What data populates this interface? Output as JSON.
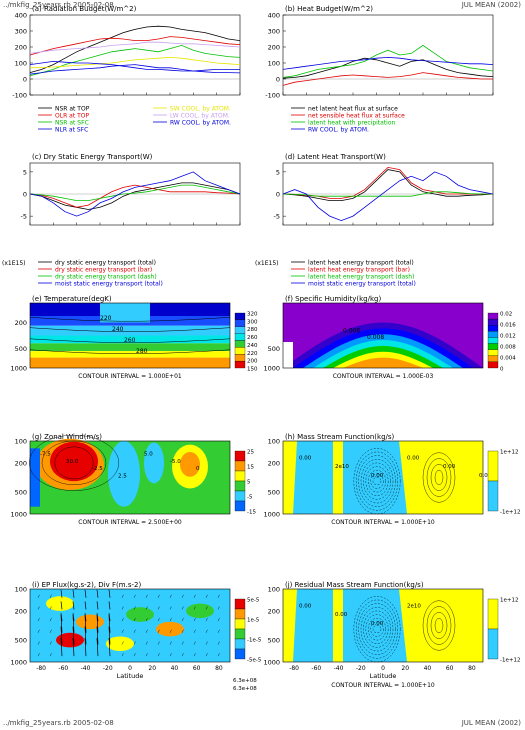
{
  "header": {
    "left": "../mkfig_25years.rb  2005-02-08",
    "right": "JUL MEAN (2002)"
  },
  "footer": {
    "left": "../mkfig_25years.rb  2005-02-08",
    "right": "JUL MEAN (2002)"
  },
  "colors": {
    "black": "#000000",
    "red": "#e00000",
    "green": "#00c000",
    "blue": "#0000e0",
    "yellow": "#e6e600",
    "violet": "#c8a0f0",
    "cyan": "#00ffff"
  },
  "chart_data": [
    {
      "type": "line",
      "title": "(a) Radiation Budget(W/m^2)",
      "ylim": [
        -100,
        400
      ],
      "yticks": [
        "400",
        "300",
        "200",
        "100",
        "0",
        "-100"
      ],
      "x": [
        -90,
        -80,
        -70,
        -60,
        -50,
        -40,
        -30,
        -20,
        -10,
        0,
        10,
        20,
        30,
        40,
        50,
        60,
        70,
        80,
        90
      ],
      "series": [
        {
          "name": "NSR at TOP",
          "color": "#000000",
          "dash": "none",
          "values": [
            40,
            60,
            90,
            130,
            170,
            200,
            230,
            260,
            290,
            310,
            325,
            330,
            325,
            310,
            300,
            290,
            270,
            250,
            240
          ]
        },
        {
          "name": "OLR at TOP",
          "color": "#e00000",
          "dash": "none",
          "values": [
            150,
            170,
            190,
            205,
            220,
            235,
            250,
            255,
            250,
            240,
            240,
            250,
            265,
            260,
            250,
            240,
            230,
            220,
            215
          ]
        },
        {
          "name": "NSR at SFC",
          "color": "#00c000",
          "dash": "none",
          "values": [
            20,
            40,
            60,
            90,
            110,
            130,
            150,
            170,
            180,
            190,
            180,
            170,
            190,
            210,
            180,
            160,
            150,
            140,
            135
          ]
        },
        {
          "name": "NLR at SFC",
          "color": "#0000e0",
          "dash": "none",
          "values": [
            30,
            40,
            50,
            55,
            60,
            65,
            70,
            80,
            85,
            90,
            80,
            70,
            70,
            60,
            50,
            45,
            40,
            40,
            38
          ]
        },
        {
          "name": "SW COOL. by ATOM.",
          "color": "#e6e600",
          "dash": "none",
          "values": [
            70,
            72,
            75,
            80,
            85,
            90,
            95,
            100,
            110,
            120,
            125,
            130,
            135,
            130,
            120,
            110,
            100,
            95,
            90
          ]
        },
        {
          "name": "LW COOL. by ATOM.",
          "color": "#c8a0f0",
          "dash": "none",
          "values": [
            160,
            170,
            180,
            185,
            190,
            195,
            200,
            210,
            215,
            220,
            230,
            230,
            225,
            220,
            220,
            215,
            210,
            205,
            200
          ]
        },
        {
          "name": "RW COOL. by ATOM.",
          "color": "#0000e0",
          "dash": "none",
          "values": [
            90,
            100,
            110,
            105,
            100,
            100,
            95,
            90,
            80,
            70,
            60,
            60,
            55,
            50,
            50,
            55,
            60,
            60,
            60
          ]
        }
      ]
    },
    {
      "type": "line",
      "title": "(b) Heat Budget(W/m^2)",
      "ylim": [
        -100,
        400
      ],
      "yticks": [
        "400",
        "300",
        "200",
        "100",
        "0",
        "-100"
      ],
      "x": [
        -90,
        -80,
        -70,
        -60,
        -50,
        -40,
        -30,
        -20,
        -10,
        0,
        10,
        20,
        30,
        40,
        50,
        60,
        70,
        80,
        90
      ],
      "series": [
        {
          "name": "net latent heat flux at surface",
          "color": "#000000",
          "dash": "none",
          "values": [
            5,
            10,
            20,
            40,
            60,
            80,
            110,
            130,
            120,
            100,
            80,
            110,
            120,
            90,
            60,
            40,
            30,
            20,
            15
          ]
        },
        {
          "name": "net sensible heat flux at surface",
          "color": "#e00000",
          "dash": "none",
          "values": [
            -40,
            -20,
            -10,
            0,
            10,
            20,
            25,
            20,
            15,
            10,
            15,
            25,
            40,
            30,
            20,
            10,
            5,
            0,
            0
          ]
        },
        {
          "name": "latent heat with precipitation",
          "color": "#00c000",
          "dash": "none",
          "values": [
            10,
            20,
            40,
            60,
            70,
            80,
            90,
            110,
            150,
            180,
            150,
            160,
            210,
            160,
            110,
            90,
            70,
            60,
            50
          ]
        },
        {
          "name": "RW COOL. by ATOM.",
          "color": "#0000e0",
          "dash": "none",
          "values": [
            60,
            70,
            80,
            90,
            100,
            110,
            115,
            120,
            130,
            135,
            130,
            120,
            115,
            110,
            105,
            100,
            95,
            95,
            90
          ]
        }
      ]
    },
    {
      "type": "line",
      "title": "(c) Dry Static Energy Transport(W)",
      "ylabel": "(x1E15)",
      "ylim": [
        -7,
        7
      ],
      "yticks": [
        "5",
        "0",
        "-5"
      ],
      "x": [
        -90,
        -80,
        -70,
        -60,
        -50,
        -40,
        -30,
        -20,
        -10,
        0,
        10,
        20,
        30,
        40,
        50,
        60,
        70,
        80,
        90
      ],
      "series": [
        {
          "name": "dry static energy transport (total)",
          "color": "#000000",
          "dash": "none",
          "values": [
            0,
            -0.5,
            -1.5,
            -2.5,
            -3,
            -3.5,
            -3,
            -2,
            -0.5,
            0.5,
            1,
            1.5,
            2,
            2.5,
            2.5,
            2,
            1.5,
            1,
            0
          ]
        },
        {
          "name": "dry static energy transport (bar)",
          "color": "#e00000",
          "dash": "none",
          "values": [
            0,
            -0.3,
            -1,
            -2,
            -3,
            -2.5,
            -1,
            0.5,
            1.5,
            2,
            1.5,
            1,
            0.5,
            0.5,
            0.5,
            0.5,
            0.3,
            0.2,
            0
          ]
        },
        {
          "name": "dry static energy transport (dash)",
          "color": "#00c000",
          "dash": "none",
          "values": [
            0,
            -0.2,
            -0.5,
            -1,
            -1.5,
            -1.5,
            -1,
            -0.5,
            0,
            0.2,
            0.5,
            1,
            1.5,
            2,
            2,
            1.5,
            1,
            0.5,
            0
          ]
        },
        {
          "name": "moist static energy transport (total)",
          "color": "#0000e0",
          "dash": "none",
          "values": [
            0,
            -0.5,
            -2,
            -4,
            -5,
            -4,
            -2,
            -1,
            0.5,
            1.5,
            2,
            2.5,
            3,
            4,
            5,
            3,
            2,
            1,
            0
          ]
        }
      ]
    },
    {
      "type": "line",
      "title": "(d) Latent Heat Transport(W)",
      "ylabel": "(x1E15)",
      "ylim": [
        -7,
        7
      ],
      "yticks": [
        "5",
        "0",
        "-5"
      ],
      "x": [
        -90,
        -80,
        -70,
        -60,
        -50,
        -40,
        -30,
        -20,
        -10,
        0,
        10,
        20,
        30,
        40,
        50,
        60,
        70,
        80,
        90
      ],
      "series": [
        {
          "name": "latent heat energy transport (total)",
          "color": "#000000",
          "dash": "none",
          "values": [
            0,
            -0.2,
            -0.5,
            -1,
            -1.5,
            -1.5,
            -1,
            0.5,
            3,
            5.5,
            5,
            2,
            0.5,
            0,
            -0.5,
            -0.5,
            -0.3,
            -0.2,
            0
          ]
        },
        {
          "name": "latent heat energy transport (bar)",
          "color": "#e00000",
          "dash": "none",
          "values": [
            0,
            -0.1,
            -0.3,
            -0.5,
            -1,
            -1,
            -0.5,
            1,
            3.5,
            6,
            5.5,
            2.5,
            1,
            0.5,
            0,
            0,
            0,
            0,
            0
          ]
        },
        {
          "name": "latent heat energy transport (dash)",
          "color": "#00c000",
          "dash": "none",
          "values": [
            0,
            -0.1,
            -0.2,
            -0.5,
            -0.5,
            -0.5,
            -0.5,
            -0.5,
            -0.5,
            -0.5,
            -0.5,
            -0.5,
            0,
            0.5,
            0.5,
            0.3,
            0.1,
            0,
            0
          ]
        },
        {
          "name": "moist static energy transport (total)",
          "color": "#0000e0",
          "dash": "none",
          "values": [
            0,
            1,
            0,
            -3,
            -5,
            -6,
            -5,
            -3,
            -1,
            1,
            3,
            4,
            3,
            5,
            4,
            2,
            1,
            0.5,
            0
          ]
        }
      ]
    },
    {
      "type": "heatmap",
      "title": "(e) Temperature(degK)",
      "note": "CONTOUR INTERVAL = 1.000E+01",
      "yticks": [
        "200",
        "500",
        "1000"
      ],
      "colorbar": [
        "320",
        "300",
        "280",
        "260",
        "240",
        "220",
        "200",
        "150"
      ],
      "colors": [
        "#0000cc",
        "#1a4cff",
        "#33ccff",
        "#00e6e6",
        "#33cc33",
        "#ffff00",
        "#ff9900",
        "#e60000"
      ],
      "contour_labels": [
        "220",
        "240",
        "260",
        "280"
      ]
    },
    {
      "type": "heatmap",
      "title": "(f) Specific Humidity(kg/kg)",
      "note": "CONTOUR INTERVAL = 1.000E-03",
      "yticks": [
        "500",
        "1000"
      ],
      "colorbar": [
        "0.02",
        "0.016",
        "0.012",
        "0.008",
        "0.004",
        "0"
      ],
      "colors": [
        "#8800cc",
        "#3300cc",
        "#0000ff",
        "#0099ff",
        "#00e6e6",
        "#00cc00",
        "#ffff00",
        "#ff9900",
        "#e60000"
      ],
      "contour_labels": [
        "0.006",
        "0.008"
      ]
    },
    {
      "type": "heatmap",
      "title": "(g) Zonal Wind(m/s)",
      "note": "CONTOUR INTERVAL = 2.500E+00",
      "yticks": [
        "100",
        "200",
        "500",
        "1000"
      ],
      "colorbar": [
        "25",
        "15",
        "5",
        "-5",
        "-15"
      ],
      "colors": [
        "#e60000",
        "#ff9900",
        "#ffff00",
        "#33cc33",
        "#33ccff",
        "#0066ff"
      ],
      "contour_labels": [
        "-7.5",
        "30.0",
        "-2.5",
        "2.5",
        "5.0",
        "-5.0",
        "0"
      ]
    },
    {
      "type": "heatmap",
      "title": "(h) Mass Stream Function(kg/s)",
      "note": "CONTOUR INTERVAL = 1.000E+10",
      "yticks": [
        "100",
        "200",
        "500",
        "1000"
      ],
      "colorbar": [
        "1e+12",
        "-1e+12"
      ],
      "colors": [
        "#ffff00",
        "#33ccff"
      ],
      "contour_labels": [
        "0.00",
        "2e10",
        "0.00",
        "0.00",
        "0.00",
        "0.00"
      ]
    },
    {
      "type": "heatmap",
      "title": "(i) EP Flux(kg.s-2), Div F(m.s-2)",
      "xlabel": "Latitude",
      "yticks": [
        "100",
        "200",
        "500",
        "1000"
      ],
      "xticks": [
        "-80",
        "-60",
        "-40",
        "-20",
        "0",
        "20",
        "40",
        "60",
        "80"
      ],
      "colorbar": [
        "5e-5",
        "1e-5",
        "-1e-5",
        "-5e-5"
      ],
      "colors": [
        "#e60000",
        "#ff9900",
        "#ffff00",
        "#33cc33",
        "#33ccff",
        "#0066ff"
      ],
      "vector_labels": [
        "6.3e+08",
        "6.3e+08"
      ]
    },
    {
      "type": "heatmap",
      "title": "(j) Residual Mass Stream Function(kg/s)",
      "note": "CONTOUR INTERVAL = 1.000E+10",
      "xlabel": "Latitude",
      "yticks": [
        "100",
        "200",
        "500",
        "1000"
      ],
      "xticks": [
        "-80",
        "-60",
        "-40",
        "-20",
        "0",
        "20",
        "40",
        "60",
        "80"
      ],
      "colorbar": [
        "1e+12",
        "-1e+12"
      ],
      "colors": [
        "#ffff00",
        "#33ccff"
      ],
      "contour_labels": [
        "0.00",
        "0.00",
        "0.00",
        "2e10"
      ]
    }
  ]
}
